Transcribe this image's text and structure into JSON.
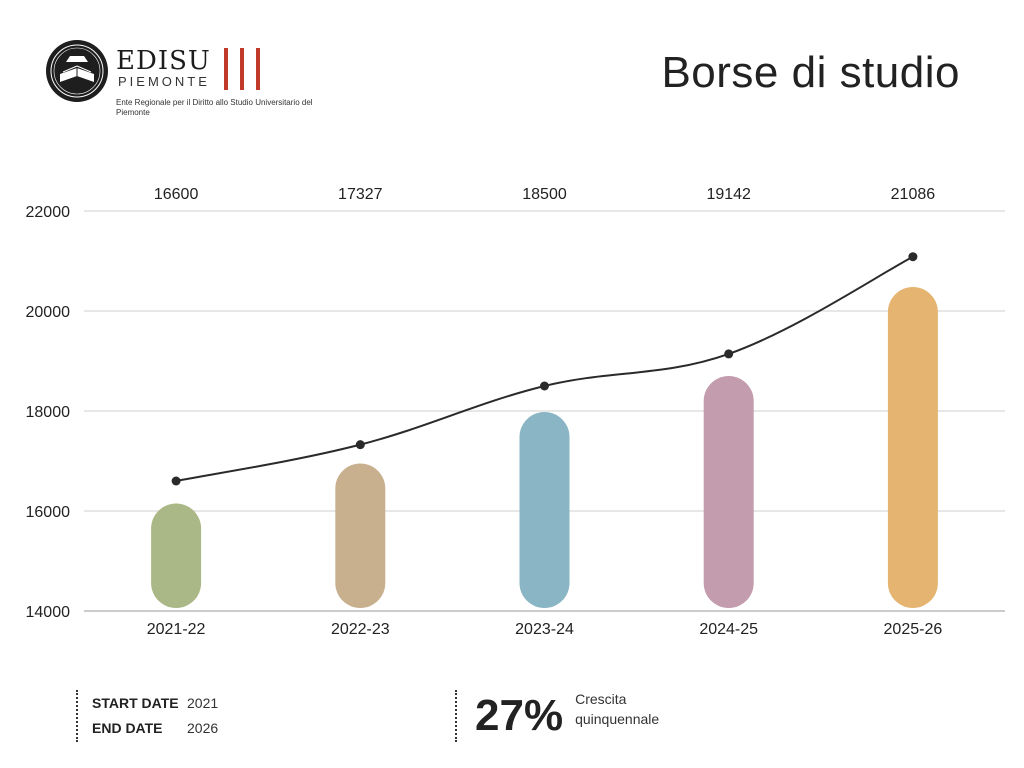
{
  "header": {
    "logo": {
      "name": "EDISU",
      "subname": "PIEMONTE",
      "tagline": "Ente Regionale per il Diritto allo Studio Universitario del Piemonte"
    },
    "title": "Borse di studio"
  },
  "chart_data": {
    "type": "bar",
    "title": "Borse di studio",
    "xlabel": "",
    "ylabel": "",
    "categories": [
      "2021-22",
      "2022-23",
      "2023-24",
      "2024-25",
      "2025-26"
    ],
    "values": [
      16600,
      17327,
      18500,
      19142,
      21086
    ],
    "bar_tops": [
      16150,
      16950,
      17980,
      18700,
      20480
    ],
    "bar_colors": [
      "#a9b886",
      "#c8b08f",
      "#8ab5c4",
      "#c39cad",
      "#e5b470"
    ],
    "line_color": "#2a2a2a",
    "ylim": [
      14000,
      22000
    ],
    "yticks": [
      14000,
      16000,
      18000,
      20000,
      22000
    ],
    "grid": true,
    "value_labels_position": "top"
  },
  "footer": {
    "start_label": "START DATE",
    "start_value": "2021",
    "end_label": "END DATE",
    "end_value": "2026",
    "growth_value": "27%",
    "growth_label": "Crescita quinquennale"
  }
}
